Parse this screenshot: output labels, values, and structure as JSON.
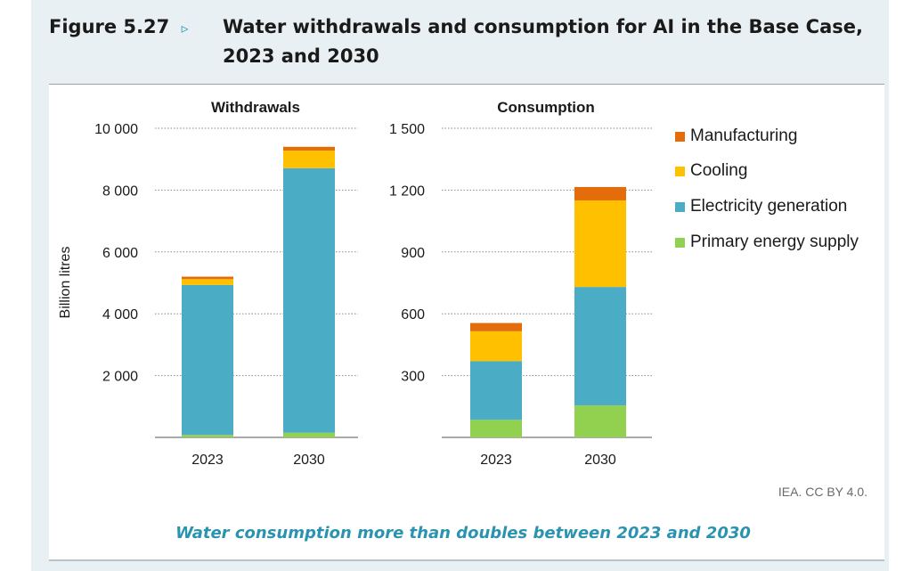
{
  "figure": {
    "number": "Figure 5.27",
    "arrow": "▹",
    "title_line1": "Water withdrawals and consumption for AI in the Base Case,",
    "title_line2": "2023 and 2030",
    "subtitle": "Water consumption more than doubles between 2023 and 2030",
    "credit": "IEA. CC BY 4.0."
  },
  "legend": [
    {
      "name": "Manufacturing",
      "color": "#e46c0a"
    },
    {
      "name": "Cooling",
      "color": "#ffc000"
    },
    {
      "name": "Electricity generation",
      "color": "#4bacc6"
    },
    {
      "name": "Primary energy supply",
      "color": "#92d050"
    }
  ],
  "chart_data": [
    {
      "type": "bar",
      "stacked": true,
      "title": "Withdrawals",
      "ylabel": "Billion litres",
      "categories": [
        "2023",
        "2030"
      ],
      "ylim": [
        0,
        10000
      ],
      "yticks": [
        2000,
        4000,
        6000,
        8000,
        10000
      ],
      "ytick_labels": [
        "2 000",
        "4 000",
        "6 000",
        "8 000",
        "10 000"
      ],
      "series": [
        {
          "name": "Primary energy supply",
          "color": "#92d050",
          "values": [
            80,
            150
          ]
        },
        {
          "name": "Electricity generation",
          "color": "#4bacc6",
          "values": [
            4850,
            8560
          ]
        },
        {
          "name": "Cooling",
          "color": "#ffc000",
          "values": [
            190,
            570
          ]
        },
        {
          "name": "Manufacturing",
          "color": "#e46c0a",
          "values": [
            80,
            120
          ]
        }
      ]
    },
    {
      "type": "bar",
      "stacked": true,
      "title": "Consumption",
      "categories": [
        "2023",
        "2030"
      ],
      "ylim": [
        0,
        1500
      ],
      "yticks": [
        300,
        600,
        900,
        1200,
        1500
      ],
      "ytick_labels": [
        "300",
        "600",
        "900",
        "1 200",
        "1 500"
      ],
      "series": [
        {
          "name": "Primary energy supply",
          "color": "#92d050",
          "values": [
            85,
            155
          ]
        },
        {
          "name": "Electricity generation",
          "color": "#4bacc6",
          "values": [
            285,
            575
          ]
        },
        {
          "name": "Cooling",
          "color": "#ffc000",
          "values": [
            145,
            420
          ]
        },
        {
          "name": "Manufacturing",
          "color": "#e46c0a",
          "values": [
            40,
            65
          ]
        }
      ]
    }
  ]
}
